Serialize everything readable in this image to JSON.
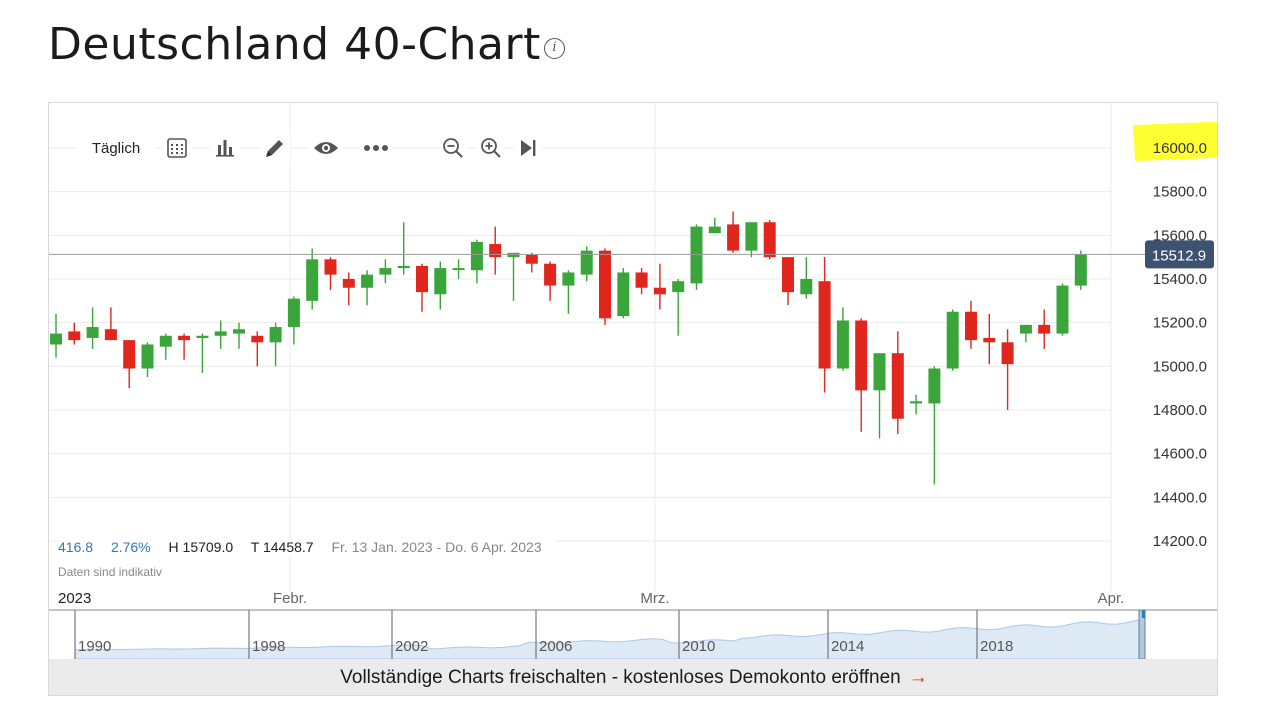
{
  "page": {
    "title": "Deutschland 40-Chart",
    "info_icon": "info-icon"
  },
  "toolbar": {
    "period_label": "Täglich",
    "icons": [
      "calendar-icon",
      "bar-chart-icon",
      "pencil-icon",
      "eye-icon",
      "more-icon",
      "zoom-out-icon",
      "zoom-in-icon",
      "skip-to-end-icon"
    ]
  },
  "stats": {
    "change": "416.8",
    "change_pct": "2.76%",
    "high": "H 15709.0",
    "low": "T 14458.7",
    "range": "Fr. 13 Jan. 2023 - Do. 6 Apr. 2023",
    "note": "Daten sind indikativ"
  },
  "colors": {
    "up": "#3aa53a",
    "down": "#e0261d",
    "price_label_bg": "#3d5170",
    "highlight": "#ffff33",
    "navigator_fill": "#dde9f5",
    "navigator_line": "#a9c8e8"
  },
  "cta": {
    "label": "Vollständige Charts freischalten - kostenloses Demokonto eröffnen",
    "arrow": "→"
  },
  "chart_data": {
    "type": "candlestick",
    "ylim": [
      14200,
      16000
    ],
    "y_ticks": [
      "16000.0",
      "15800.0",
      "15600.0",
      "15400.0",
      "15200.0",
      "15000.0",
      "14800.0",
      "14600.0",
      "14400.0",
      "14200.0"
    ],
    "x_labels": [
      "2023",
      "Febr.",
      "Mrz.",
      "Apr."
    ],
    "current_price": "15512.9",
    "highlighted_tick": "16000.0",
    "candles": [
      {
        "o": 15100,
        "h": 15240,
        "l": 15040,
        "c": 15150
      },
      {
        "o": 15160,
        "h": 15200,
        "l": 15100,
        "c": 15120
      },
      {
        "o": 15130,
        "h": 15270,
        "l": 15080,
        "c": 15180
      },
      {
        "o": 15170,
        "h": 15270,
        "l": 15120,
        "c": 15120
      },
      {
        "o": 15120,
        "h": 15120,
        "l": 14900,
        "c": 14990
      },
      {
        "o": 14990,
        "h": 15110,
        "l": 14950,
        "c": 15100
      },
      {
        "o": 15090,
        "h": 15150,
        "l": 15030,
        "c": 15140
      },
      {
        "o": 15140,
        "h": 15150,
        "l": 15030,
        "c": 15120
      },
      {
        "o": 15130,
        "h": 15150,
        "l": 14970,
        "c": 15140
      },
      {
        "o": 15140,
        "h": 15210,
        "l": 15080,
        "c": 15160
      },
      {
        "o": 15150,
        "h": 15200,
        "l": 15080,
        "c": 15170
      },
      {
        "o": 15140,
        "h": 15160,
        "l": 15000,
        "c": 15110
      },
      {
        "o": 15110,
        "h": 15200,
        "l": 15000,
        "c": 15180
      },
      {
        "o": 15180,
        "h": 15320,
        "l": 15100,
        "c": 15310
      },
      {
        "o": 15300,
        "h": 15540,
        "l": 15260,
        "c": 15490
      },
      {
        "o": 15490,
        "h": 15500,
        "l": 15350,
        "c": 15420
      },
      {
        "o": 15400,
        "h": 15430,
        "l": 15280,
        "c": 15360
      },
      {
        "o": 15360,
        "h": 15440,
        "l": 15280,
        "c": 15420
      },
      {
        "o": 15420,
        "h": 15490,
        "l": 15380,
        "c": 15450
      },
      {
        "o": 15450,
        "h": 15660,
        "l": 15420,
        "c": 15460
      },
      {
        "o": 15460,
        "h": 15470,
        "l": 15250,
        "c": 15340
      },
      {
        "o": 15330,
        "h": 15480,
        "l": 15260,
        "c": 15450
      },
      {
        "o": 15450,
        "h": 15490,
        "l": 15400,
        "c": 15450
      },
      {
        "o": 15440,
        "h": 15580,
        "l": 15380,
        "c": 15570
      },
      {
        "o": 15560,
        "h": 15640,
        "l": 15420,
        "c": 15500
      },
      {
        "o": 15500,
        "h": 15510,
        "l": 15300,
        "c": 15520
      },
      {
        "o": 15510,
        "h": 15520,
        "l": 15430,
        "c": 15470
      },
      {
        "o": 15470,
        "h": 15480,
        "l": 15300,
        "c": 15370
      },
      {
        "o": 15370,
        "h": 15440,
        "l": 15240,
        "c": 15430
      },
      {
        "o": 15420,
        "h": 15550,
        "l": 15390,
        "c": 15530
      },
      {
        "o": 15530,
        "h": 15540,
        "l": 15190,
        "c": 15220
      },
      {
        "o": 15230,
        "h": 15450,
        "l": 15220,
        "c": 15430
      },
      {
        "o": 15430,
        "h": 15450,
        "l": 15330,
        "c": 15360
      },
      {
        "o": 15360,
        "h": 15470,
        "l": 15260,
        "c": 15330
      },
      {
        "o": 15340,
        "h": 15400,
        "l": 15140,
        "c": 15390
      },
      {
        "o": 15380,
        "h": 15650,
        "l": 15350,
        "c": 15640
      },
      {
        "o": 15610,
        "h": 15680,
        "l": 15610,
        "c": 15640
      },
      {
        "o": 15650,
        "h": 15709,
        "l": 15520,
        "c": 15530
      },
      {
        "o": 15530,
        "h": 15660,
        "l": 15500,
        "c": 15660
      },
      {
        "o": 15660,
        "h": 15670,
        "l": 15490,
        "c": 15500
      },
      {
        "o": 15500,
        "h": 15500,
        "l": 15280,
        "c": 15340
      },
      {
        "o": 15330,
        "h": 15500,
        "l": 15310,
        "c": 15400
      },
      {
        "o": 15390,
        "h": 15500,
        "l": 14880,
        "c": 14990
      },
      {
        "o": 14990,
        "h": 15270,
        "l": 14980,
        "c": 15210
      },
      {
        "o": 15210,
        "h": 15220,
        "l": 14700,
        "c": 14890
      },
      {
        "o": 14890,
        "h": 15060,
        "l": 14670,
        "c": 15060
      },
      {
        "o": 15060,
        "h": 15160,
        "l": 14690,
        "c": 14760
      },
      {
        "o": 14830,
        "h": 14870,
        "l": 14780,
        "c": 14840
      },
      {
        "o": 14830,
        "h": 15000,
        "l": 14458.7,
        "c": 14990
      },
      {
        "o": 14990,
        "h": 15260,
        "l": 14980,
        "c": 15250
      },
      {
        "o": 15250,
        "h": 15300,
        "l": 15080,
        "c": 15120
      },
      {
        "o": 15130,
        "h": 15240,
        "l": 15010,
        "c": 15110
      },
      {
        "o": 15110,
        "h": 15170,
        "l": 14800,
        "c": 15010
      },
      {
        "o": 15150,
        "h": 15190,
        "l": 15110,
        "c": 15190
      },
      {
        "o": 15190,
        "h": 15260,
        "l": 15080,
        "c": 15150
      },
      {
        "o": 15150,
        "h": 15380,
        "l": 15140,
        "c": 15370
      },
      {
        "o": 15370,
        "h": 15530,
        "l": 15350,
        "c": 15512.9
      }
    ]
  },
  "navigator": {
    "year_labels": [
      "1990",
      "1998",
      "2002",
      "2006",
      "2010",
      "2014",
      "2018"
    ]
  }
}
